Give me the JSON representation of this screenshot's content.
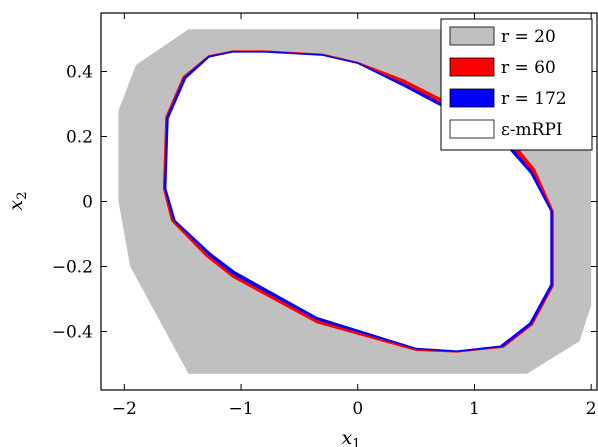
{
  "chart_data": {
    "type": "area",
    "xlabel": "x1",
    "ylabel": "x2",
    "xlim": [
      -2.2,
      2.05
    ],
    "ylim": [
      -0.58,
      0.58
    ],
    "xticks": [
      -2,
      -1,
      0,
      1,
      2
    ],
    "yticks": [
      -0.4,
      -0.2,
      0,
      0.2,
      0.4
    ],
    "x_tick_labels": [
      "−2",
      "−1",
      "0",
      "1",
      "2"
    ],
    "y_tick_labels": [
      "−0.4",
      "−0.2",
      "0",
      "0.2",
      "0.4"
    ],
    "grid": false,
    "legend_position": "top-right",
    "series": [
      {
        "name": "r = 20",
        "color": "#c0c0c0",
        "polygon": [
          [
            -1.45,
            0.53
          ],
          [
            1.45,
            0.53
          ],
          [
            1.9,
            0.43
          ],
          [
            2.0,
            0.32
          ],
          [
            2.0,
            -0.32
          ],
          [
            1.9,
            -0.43
          ],
          [
            1.45,
            -0.53
          ],
          [
            -1.45,
            -0.53
          ],
          [
            -1.95,
            -0.2
          ],
          [
            -2.05,
            0.0
          ],
          [
            -2.05,
            0.28
          ],
          [
            -1.9,
            0.42
          ]
        ]
      },
      {
        "name": "r = 60",
        "color": "#ff0000",
        "polygon": [
          [
            -0.8,
            0.465
          ],
          [
            -1.07,
            0.465
          ],
          [
            -1.28,
            0.45
          ],
          [
            -1.5,
            0.385
          ],
          [
            -1.65,
            0.26
          ],
          [
            -1.67,
            0.04
          ],
          [
            -1.6,
            -0.06
          ],
          [
            -1.3,
            -0.17
          ],
          [
            -1.07,
            -0.235
          ],
          [
            -0.35,
            -0.375
          ],
          [
            0.5,
            -0.46
          ],
          [
            0.85,
            -0.465
          ],
          [
            1.25,
            -0.45
          ],
          [
            1.5,
            -0.38
          ],
          [
            1.68,
            -0.26
          ],
          [
            1.68,
            -0.03
          ],
          [
            1.52,
            0.1
          ],
          [
            1.25,
            0.22
          ],
          [
            0.4,
            0.375
          ],
          [
            0.0,
            0.43
          ],
          [
            -0.3,
            0.455
          ]
        ]
      },
      {
        "name": "r = 172",
        "color": "#0000ff",
        "polygon": [
          [
            -0.8,
            0.463
          ],
          [
            -1.07,
            0.463
          ],
          [
            -1.28,
            0.448
          ],
          [
            -1.49,
            0.383
          ],
          [
            -1.64,
            0.258
          ],
          [
            -1.66,
            0.04
          ],
          [
            -1.58,
            -0.06
          ],
          [
            -1.28,
            -0.165
          ],
          [
            -1.07,
            -0.225
          ],
          [
            -0.35,
            -0.365
          ],
          [
            0.5,
            -0.455
          ],
          [
            0.85,
            -0.463
          ],
          [
            1.24,
            -0.448
          ],
          [
            1.49,
            -0.378
          ],
          [
            1.67,
            -0.258
          ],
          [
            1.67,
            -0.03
          ],
          [
            1.5,
            0.09
          ],
          [
            1.22,
            0.21
          ],
          [
            0.4,
            0.362
          ],
          [
            0.0,
            0.428
          ],
          [
            -0.3,
            0.453
          ]
        ]
      },
      {
        "name": "ε-mRPI",
        "color": "#ffffff",
        "polygon": [
          [
            -0.8,
            0.458
          ],
          [
            -1.07,
            0.458
          ],
          [
            -1.27,
            0.443
          ],
          [
            -1.47,
            0.378
          ],
          [
            -1.62,
            0.255
          ],
          [
            -1.64,
            0.04
          ],
          [
            -1.56,
            -0.058
          ],
          [
            -1.26,
            -0.158
          ],
          [
            -1.05,
            -0.215
          ],
          [
            -0.35,
            -0.355
          ],
          [
            0.5,
            -0.45
          ],
          [
            0.85,
            -0.458
          ],
          [
            1.22,
            -0.443
          ],
          [
            1.47,
            -0.373
          ],
          [
            1.65,
            -0.255
          ],
          [
            1.65,
            -0.03
          ],
          [
            1.48,
            0.085
          ],
          [
            1.2,
            0.2
          ],
          [
            0.4,
            0.352
          ],
          [
            0.0,
            0.423
          ],
          [
            -0.3,
            0.448
          ]
        ]
      }
    ],
    "legend": [
      "r = 20",
      "r = 60",
      "r = 172",
      "ε-mRPI"
    ]
  }
}
